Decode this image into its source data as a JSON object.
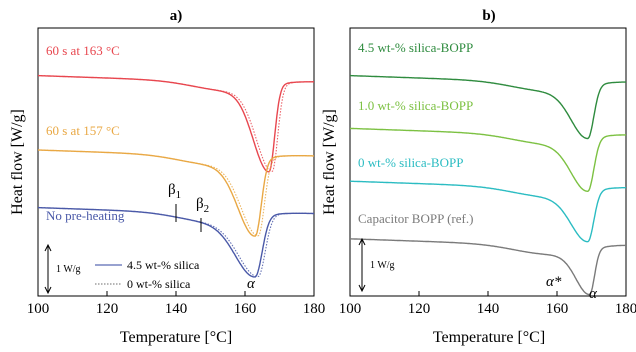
{
  "chart_data": [
    {
      "type": "line",
      "panel_label": "a)",
      "xlabel": "Temperature [°C]",
      "ylabel": "Heat flow [W/g]",
      "xlim": [
        100,
        180
      ],
      "x_ticks": [
        "100",
        "120",
        "140",
        "160",
        "180"
      ],
      "scale_bar": "1 W/g",
      "legend": {
        "solid": "4.5 wt-% silica",
        "dotted": "0 wt-% silica"
      },
      "annotations": {
        "beta1": "β",
        "beta1_sub": "1",
        "beta2": "β",
        "beta2_sub": "2",
        "alpha": "α"
      },
      "series": [
        {
          "name": "60 s at 163 °C",
          "color": "#e8474f",
          "offset": 1.55,
          "peak_x": 167,
          "peak_depth": 1.75,
          "peak_width": 3.2
        },
        {
          "name": "60 s at 157 °C",
          "color": "#e9a844",
          "offset": 0.0,
          "peak_x": 163,
          "peak_depth": 1.55,
          "peak_width": 3.5
        },
        {
          "name": "No pre-heating",
          "color": "#4a59a8",
          "offset": -1.2,
          "peak_x": 163,
          "peak_depth": 1.2,
          "peak_width": 4.0
        }
      ]
    },
    {
      "type": "line",
      "panel_label": "b)",
      "xlabel": "Temperature [°C]",
      "ylabel": "Heat flow [W/g]",
      "xlim": [
        100,
        180
      ],
      "x_ticks": [
        "100",
        "120",
        "140",
        "160",
        "180"
      ],
      "scale_bar": "1 W/g",
      "annotations": {
        "alpha_star": "α*",
        "alpha": "α"
      },
      "series": [
        {
          "name": "4.5 wt-% silica-BOPP",
          "color": "#2e8b3e",
          "offset": 1.55,
          "peak_x": 169,
          "peak_depth": 1.05,
          "peak_width": 3.4
        },
        {
          "name": "1.0 wt-% silica-BOPP",
          "color": "#7cc142",
          "offset": 0.45,
          "peak_x": 169,
          "peak_depth": 1.05,
          "peak_width": 3.4
        },
        {
          "name": "0 wt-% silica-BOPP",
          "color": "#2bbcc2",
          "offset": -0.65,
          "peak_x": 169,
          "peak_depth": 1.0,
          "peak_width": 3.4
        },
        {
          "name": "Capacitor BOPP (ref.)",
          "color": "#7a7a7a",
          "offset": -1.85,
          "peak_x": 169.5,
          "peak_depth": 0.9,
          "peak_width": 2.8
        }
      ]
    }
  ]
}
